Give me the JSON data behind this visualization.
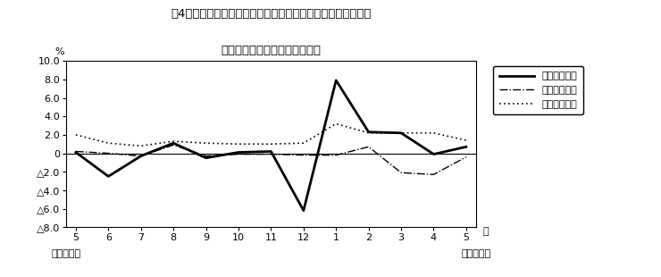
{
  "title_line1": "笥4図　賃金、労働時間、常用雇用指数　対前年同月比の推移",
  "title_line2": "（規樥５人以上　調査産業計）",
  "xlabel_months": [
    "5",
    "6",
    "7",
    "8",
    "9",
    "10",
    "11",
    "12",
    "1",
    "2",
    "3",
    "4",
    "5"
  ],
  "xlabel_bottom1": "平成２２年",
  "xlabel_bottom2": "平成２３年",
  "month_label": "月",
  "ylabel": "%",
  "ylim": [
    -8.0,
    10.0
  ],
  "yticks": [
    10.0,
    8.0,
    6.0,
    4.0,
    2.0,
    0.0,
    -2.0,
    -4.0,
    -6.0,
    -8.0
  ],
  "ytick_labels": [
    "10.0",
    "8.0",
    "6.0",
    "4.0",
    "2.0",
    "0",
    "△2.0",
    "△4.0",
    "△6.0",
    "△8.0"
  ],
  "x_indices": [
    0,
    1,
    2,
    3,
    4,
    5,
    6,
    7,
    8,
    9,
    10,
    11,
    12
  ],
  "series_genkin": [
    0.1,
    -2.5,
    -0.3,
    1.1,
    -0.5,
    0.1,
    0.2,
    -6.2,
    7.9,
    2.3,
    2.2,
    -0.1,
    0.7
  ],
  "series_jitsu": [
    0.2,
    0.0,
    -0.3,
    0.9,
    -0.3,
    -0.1,
    -0.1,
    -0.2,
    -0.2,
    0.7,
    -2.1,
    -2.3,
    -0.4
  ],
  "series_joyo": [
    2.0,
    1.1,
    0.8,
    1.3,
    1.1,
    1.0,
    1.0,
    1.1,
    3.2,
    2.2,
    2.2,
    2.2,
    1.4
  ],
  "legend_labels": [
    "現金給与総額",
    "総実労働時間",
    "常用雇用指数"
  ],
  "line_color": "#000000",
  "bg_color": "#ffffff",
  "title_fontsize": 9.5,
  "tick_fontsize": 8.0,
  "legend_fontsize": 8.0
}
